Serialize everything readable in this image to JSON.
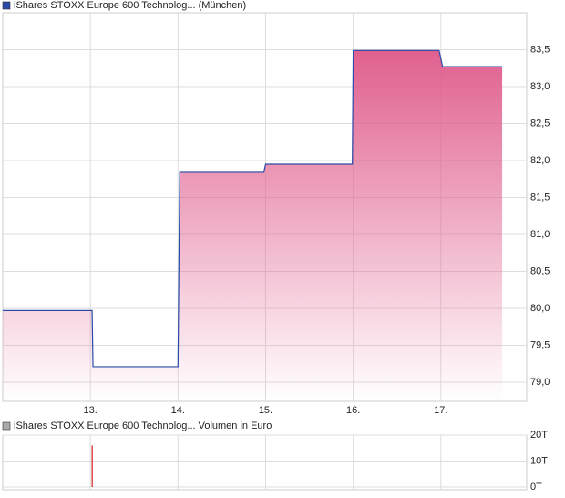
{
  "chart_data": [
    {
      "type": "area",
      "title": "iShares STOXX Europe 600 Technolog... (München)",
      "color": "#2a4aa8",
      "fill": "#e0608f",
      "x": [
        12.0,
        13.02,
        13.03,
        14.0,
        14.02,
        14.98,
        15.0,
        15.99,
        16.0,
        16.98,
        17.02,
        17.7
      ],
      "values": [
        79.97,
        79.97,
        79.21,
        79.21,
        81.84,
        81.84,
        81.95,
        81.95,
        83.49,
        83.49,
        83.27,
        83.27
      ],
      "xlim": [
        12.0,
        17.98
      ],
      "xticks": [
        {
          "value": 13,
          "label": "13."
        },
        {
          "value": 14,
          "label": "14."
        },
        {
          "value": 15,
          "label": "15."
        },
        {
          "value": 16,
          "label": "16."
        },
        {
          "value": 17,
          "label": "17."
        }
      ],
      "ylim": [
        78.74,
        84.0
      ],
      "yticks": [
        {
          "value": 79.0,
          "label": "79,0"
        },
        {
          "value": 79.5,
          "label": "79,5"
        },
        {
          "value": 80.0,
          "label": "80,0"
        },
        {
          "value": 80.5,
          "label": "80,5"
        },
        {
          "value": 81.0,
          "label": "81,0"
        },
        {
          "value": 81.5,
          "label": "81,5"
        },
        {
          "value": 82.0,
          "label": "82,0"
        },
        {
          "value": 82.5,
          "label": "82,5"
        },
        {
          "value": 83.0,
          "label": "83,0"
        },
        {
          "value": 83.5,
          "label": "83,5"
        }
      ],
      "grid": true
    },
    {
      "type": "bar",
      "title": "iShares STOXX Europe 600 Technolog... Volumen in Euro",
      "color": "#d02020",
      "legend_color": "#aaaaaa",
      "x": [
        13.02
      ],
      "values": [
        16
      ],
      "xlim": [
        12.0,
        17.98
      ],
      "xticks": [
        13,
        14,
        15,
        16,
        17
      ],
      "ylim": [
        0,
        20
      ],
      "yticks": [
        {
          "value": 0,
          "label": "0T"
        },
        {
          "value": 10,
          "label": "10T"
        },
        {
          "value": 20,
          "label": "20T"
        }
      ],
      "grid": true
    }
  ]
}
